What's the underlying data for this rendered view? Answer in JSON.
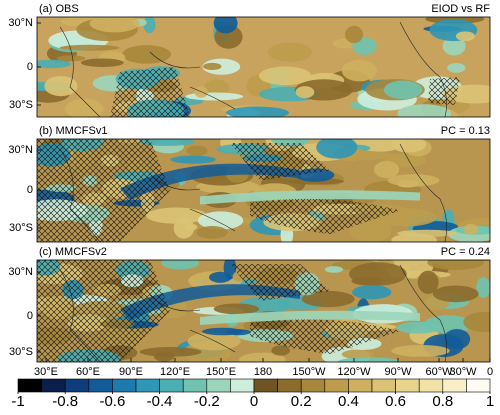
{
  "panels": [
    {
      "label": "(a) OBS",
      "note": "EIOD vs RF"
    },
    {
      "label": "(b) MMCFSv1",
      "note": "PC = 0.13"
    },
    {
      "label": "(c) MMCFSv2",
      "note": "PC = 0.24"
    }
  ],
  "lat_labels": [
    "30°N",
    "0",
    "30°S"
  ],
  "lon_labels": [
    "30°E",
    "60°E",
    "90°E",
    "120°E",
    "150°E",
    "180",
    "150°W",
    "120°W",
    "90°W",
    "60°W",
    "30°W",
    "0"
  ],
  "colorbar": {
    "ticks": [
      -1,
      -0.8,
      -0.6,
      -0.4,
      -0.2,
      0,
      0.2,
      0.4,
      0.6,
      0.8,
      1
    ],
    "colors": [
      "#000000",
      "#0a1f4c",
      "#0d3d7a",
      "#115c99",
      "#1c7aae",
      "#2e96b6",
      "#4aaeb3",
      "#6fc3b0",
      "#9bd6bb",
      "#cdeedd",
      "#6e5523",
      "#8b6c2c",
      "#a7873b",
      "#bd9c4d",
      "#ceb060",
      "#dcc374",
      "#e8d48c",
      "#f1e2a8",
      "#f8efc8",
      "#fefbf1"
    ]
  }
}
